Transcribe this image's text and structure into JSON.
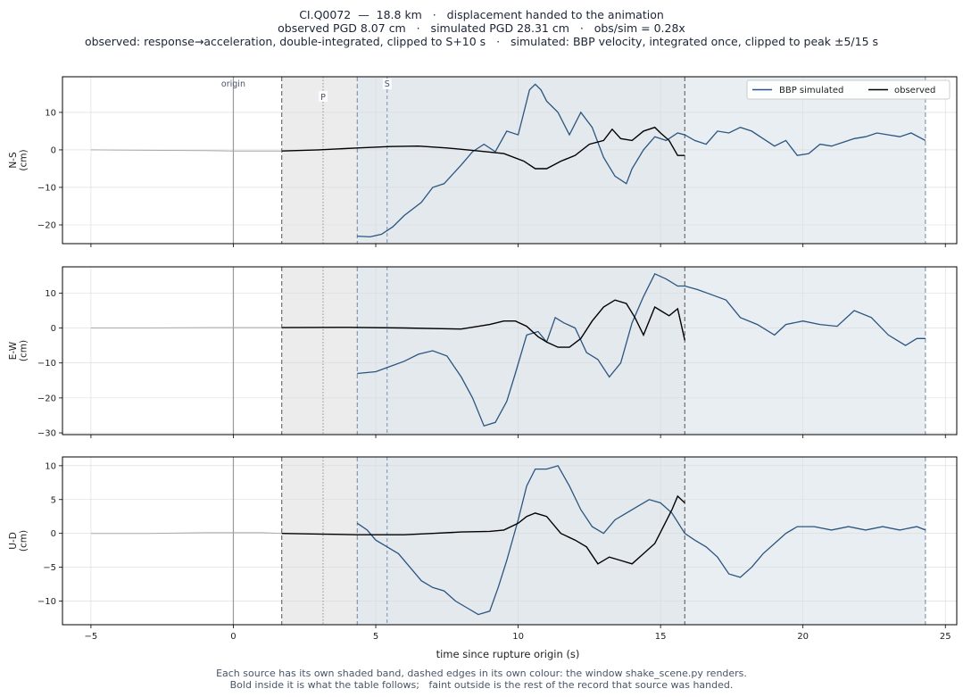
{
  "title_lines": [
    "CI.Q0072  —  18.8 km   ·   displacement handed to the animation",
    "observed PGD 8.07 cm   ·   simulated PGD 28.31 cm   ·   obs/sim = 0.28x",
    "observed: response→acceleration, double-integrated, clipped to S+10 s   ·   simulated: BBP velocity, integrated once, clipped to peak ±5/15 s"
  ],
  "footer_lines": [
    "Each source has its own shaded band, dashed edges in its own colour: the window shake_scene.py renders.",
    "Bold inside it is what the table follows;   faint outside is the rest of the record that source was handed."
  ],
  "colors": {
    "simulated": "#2b5580",
    "observed": "#000000",
    "observed_faint": "#a9a9a9",
    "obs_band": "#e6e6e6",
    "sim_band": "#e2e8ef",
    "origin_line": "#999999"
  },
  "chart_data": {
    "type": "line",
    "xlabel": "time since rupture origin (s)",
    "xlim": [
      -6,
      25.4
    ],
    "xticks": [
      -5,
      0,
      5,
      10,
      15,
      20,
      25
    ],
    "markers": {
      "origin": 0.0,
      "origin_label": "origin",
      "P": 3.15,
      "P_label": "P",
      "S": 5.4,
      "S_label": "S"
    },
    "observed_window": [
      1.7,
      15.85
    ],
    "simulated_window": [
      4.35,
      24.3
    ],
    "legend": {
      "position": "top-right",
      "entries": [
        "BBP simulated",
        "observed"
      ]
    },
    "panels": [
      {
        "name": "N-S",
        "ylabel": "N-S\n(cm)",
        "ylim": [
          -25,
          19.5
        ],
        "yticks": [
          -20,
          -10,
          0,
          10
        ],
        "simulated": {
          "x": [
            4.35,
            4.8,
            5.2,
            5.6,
            6.0,
            6.6,
            7.0,
            7.4,
            8.0,
            8.4,
            8.8,
            9.2,
            9.6,
            10.0,
            10.4,
            10.6,
            10.8,
            11.0,
            11.4,
            11.8,
            12.2,
            12.6,
            13.0,
            13.4,
            13.8,
            14.0,
            14.4,
            14.8,
            15.2,
            15.6,
            15.85,
            16.2,
            16.6,
            17.0,
            17.4,
            17.8,
            18.2,
            18.6,
            19.0,
            19.4,
            19.8,
            20.2,
            20.6,
            21.0,
            21.4,
            21.8,
            22.2,
            22.6,
            23.0,
            23.4,
            23.8,
            24.3
          ],
          "y": [
            -23.0,
            -23.2,
            -22.5,
            -20.5,
            -17.5,
            -14.0,
            -10.0,
            -9.0,
            -4.0,
            -0.5,
            1.5,
            -0.5,
            5.0,
            4.0,
            16.0,
            17.5,
            16.0,
            13.0,
            10.0,
            4.0,
            10.0,
            6.0,
            -2.0,
            -7.0,
            -9.0,
            -5.0,
            0.0,
            3.5,
            2.5,
            4.5,
            4.0,
            2.5,
            1.5,
            5.0,
            4.5,
            6.0,
            5.0,
            3.0,
            1.0,
            2.5,
            -1.5,
            -1.0,
            1.5,
            1.0,
            2.0,
            3.0,
            3.5,
            4.5,
            4.0,
            3.5,
            4.5,
            2.5
          ]
        },
        "observed": {
          "x": [
            -5.0,
            -3.0,
            -1.0,
            0.0,
            1.0,
            1.7,
            3.0,
            4.35,
            5.5,
            6.5,
            7.5,
            8.5,
            9.5,
            10.2,
            10.6,
            11.0,
            11.5,
            12.0,
            12.5,
            13.0,
            13.3,
            13.6,
            14.0,
            14.4,
            14.8,
            15.0,
            15.3,
            15.6,
            15.85
          ],
          "y": [
            0.0,
            -0.1,
            -0.2,
            -0.3,
            -0.3,
            -0.3,
            0.0,
            0.5,
            0.9,
            1.0,
            0.5,
            -0.2,
            -1.0,
            -3.0,
            -5.0,
            -5.0,
            -3.0,
            -1.5,
            1.5,
            2.5,
            5.5,
            3.0,
            2.5,
            5.0,
            6.0,
            4.5,
            2.5,
            -1.5,
            -1.5
          ]
        }
      },
      {
        "name": "E-W",
        "ylabel": "E-W\n(cm)",
        "ylim": [
          -30.5,
          17.5
        ],
        "yticks": [
          -30,
          -20,
          -10,
          0,
          10
        ],
        "simulated": {
          "x": [
            4.35,
            5.0,
            5.5,
            6.0,
            6.5,
            7.0,
            7.5,
            8.0,
            8.4,
            8.8,
            9.2,
            9.6,
            9.9,
            10.3,
            10.7,
            11.0,
            11.3,
            11.6,
            12.0,
            12.4,
            12.8,
            13.2,
            13.6,
            14.0,
            14.4,
            14.8,
            15.2,
            15.6,
            15.85,
            16.3,
            16.8,
            17.3,
            17.8,
            18.4,
            19.0,
            19.4,
            20.0,
            20.6,
            21.2,
            21.8,
            22.4,
            23.0,
            23.6,
            24.0,
            24.3
          ],
          "y": [
            -13.0,
            -12.5,
            -11.0,
            -9.5,
            -7.5,
            -6.5,
            -8.0,
            -14.0,
            -20.0,
            -28.0,
            -27.0,
            -21.0,
            -13.0,
            -2.0,
            -1.0,
            -4.0,
            3.0,
            1.5,
            0.0,
            -7.0,
            -9.0,
            -14.0,
            -10.0,
            1.5,
            9.0,
            15.5,
            14.0,
            12.0,
            12.0,
            11.0,
            9.5,
            8.0,
            3.0,
            1.0,
            -2.0,
            1.0,
            2.0,
            1.0,
            0.5,
            5.0,
            3.0,
            -2.0,
            -5.0,
            -3.0,
            -3.0
          ]
        },
        "observed": {
          "x": [
            -5.0,
            -3.0,
            -1.0,
            0.0,
            1.0,
            1.7,
            4.0,
            6.0,
            8.0,
            9.0,
            9.5,
            9.9,
            10.3,
            10.7,
            11.0,
            11.4,
            11.8,
            12.2,
            12.6,
            13.0,
            13.4,
            13.8,
            14.1,
            14.4,
            14.8,
            15.0,
            15.3,
            15.6,
            15.85
          ],
          "y": [
            0.0,
            0.0,
            0.1,
            0.1,
            0.1,
            0.1,
            0.2,
            0.0,
            -0.3,
            1.0,
            2.0,
            2.0,
            0.5,
            -2.5,
            -4.0,
            -5.5,
            -5.5,
            -3.0,
            2.0,
            6.0,
            8.0,
            7.0,
            3.0,
            -2.0,
            6.0,
            5.0,
            3.5,
            5.5,
            -3.5
          ]
        }
      },
      {
        "name": "U-D",
        "ylabel": "U-D\n(cm)",
        "ylim": [
          -13.5,
          11.3
        ],
        "yticks": [
          -10,
          -5,
          0,
          5,
          10
        ],
        "simulated": {
          "x": [
            4.35,
            4.7,
            5.0,
            5.4,
            5.8,
            6.2,
            6.6,
            7.0,
            7.4,
            7.8,
            8.2,
            8.6,
            9.0,
            9.3,
            9.6,
            10.0,
            10.3,
            10.6,
            11.0,
            11.4,
            11.8,
            12.2,
            12.6,
            13.0,
            13.4,
            13.8,
            14.2,
            14.6,
            15.0,
            15.4,
            15.85,
            16.2,
            16.6,
            17.0,
            17.4,
            17.8,
            18.2,
            18.6,
            19.0,
            19.4,
            19.8,
            20.4,
            21.0,
            21.6,
            22.2,
            22.8,
            23.4,
            24.0,
            24.3
          ],
          "y": [
            1.5,
            0.5,
            -1.0,
            -2.0,
            -3.0,
            -5.0,
            -7.0,
            -8.0,
            -8.5,
            -10.0,
            -11.0,
            -12.0,
            -11.5,
            -8.0,
            -4.0,
            2.0,
            7.0,
            9.5,
            9.5,
            10.0,
            7.0,
            3.5,
            1.0,
            0.0,
            2.0,
            3.0,
            4.0,
            5.0,
            4.5,
            3.0,
            0.0,
            -1.0,
            -2.0,
            -3.5,
            -6.0,
            -6.5,
            -5.0,
            -3.0,
            -1.5,
            0.0,
            1.0,
            1.0,
            0.5,
            1.0,
            0.5,
            1.0,
            0.5,
            1.0,
            0.5
          ]
        },
        "observed": {
          "x": [
            -5.0,
            -3.0,
            -1.0,
            0.0,
            1.0,
            1.7,
            3.0,
            4.35,
            6.0,
            7.0,
            8.0,
            9.0,
            9.5,
            10.0,
            10.3,
            10.6,
            11.0,
            11.5,
            12.0,
            12.4,
            12.8,
            13.2,
            13.6,
            14.0,
            14.4,
            14.8,
            15.1,
            15.4,
            15.6,
            15.85
          ],
          "y": [
            0.0,
            0.0,
            0.1,
            0.1,
            0.1,
            0.0,
            -0.1,
            -0.2,
            -0.2,
            0.0,
            0.2,
            0.3,
            0.5,
            1.5,
            2.5,
            3.0,
            2.5,
            0.0,
            -1.0,
            -2.0,
            -4.5,
            -3.5,
            -4.0,
            -4.5,
            -3.0,
            -1.5,
            1.0,
            3.5,
            5.5,
            4.5
          ]
        }
      }
    ]
  }
}
